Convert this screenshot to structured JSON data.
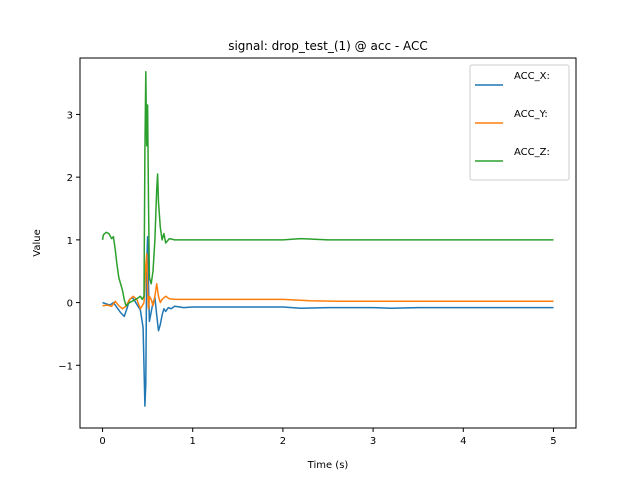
{
  "chart_data": {
    "type": "line",
    "title": "signal: drop_test_(1) @ acc - ACC",
    "xlabel": "Time (s)",
    "ylabel": "Value",
    "xlim": [
      -0.25,
      5.25
    ],
    "ylim": [
      -2.0,
      3.9
    ],
    "xticks": [
      0,
      1,
      2,
      3,
      4,
      5
    ],
    "yticks": [
      -1,
      0,
      1,
      2,
      3
    ],
    "grid": false,
    "legend": "top-right",
    "series": [
      {
        "name": "ACC_X:",
        "color": "#1f77b4",
        "points": [
          [
            0.0,
            0.0
          ],
          [
            0.04,
            -0.02
          ],
          [
            0.08,
            -0.04
          ],
          [
            0.12,
            0.0
          ],
          [
            0.16,
            -0.08
          ],
          [
            0.2,
            -0.16
          ],
          [
            0.24,
            -0.22
          ],
          [
            0.27,
            -0.1
          ],
          [
            0.3,
            0.05
          ],
          [
            0.33,
            0.08
          ],
          [
            0.36,
            0.02
          ],
          [
            0.39,
            -0.05
          ],
          [
            0.42,
            -0.12
          ],
          [
            0.45,
            -0.4
          ],
          [
            0.47,
            -1.65
          ],
          [
            0.48,
            -1.3
          ],
          [
            0.49,
            0.6
          ],
          [
            0.5,
            1.05
          ],
          [
            0.51,
            0.3
          ],
          [
            0.52,
            -0.3
          ],
          [
            0.54,
            -0.15
          ],
          [
            0.56,
            0.0
          ],
          [
            0.58,
            0.08
          ],
          [
            0.6,
            -0.2
          ],
          [
            0.62,
            -0.45
          ],
          [
            0.64,
            -0.35
          ],
          [
            0.66,
            -0.2
          ],
          [
            0.68,
            -0.1
          ],
          [
            0.7,
            -0.14
          ],
          [
            0.73,
            -0.08
          ],
          [
            0.76,
            -0.1
          ],
          [
            0.8,
            -0.06
          ],
          [
            0.9,
            -0.08
          ],
          [
            1.0,
            -0.07
          ],
          [
            1.5,
            -0.07
          ],
          [
            2.0,
            -0.07
          ],
          [
            2.2,
            -0.09
          ],
          [
            2.5,
            -0.08
          ],
          [
            3.0,
            -0.08
          ],
          [
            3.2,
            -0.09
          ],
          [
            3.5,
            -0.08
          ],
          [
            4.0,
            -0.08
          ],
          [
            4.5,
            -0.08
          ],
          [
            5.0,
            -0.08
          ]
        ]
      },
      {
        "name": "ACC_Y:",
        "color": "#ff7f0e",
        "points": [
          [
            0.0,
            -0.05
          ],
          [
            0.05,
            -0.04
          ],
          [
            0.1,
            -0.06
          ],
          [
            0.14,
            0.02
          ],
          [
            0.18,
            -0.05
          ],
          [
            0.22,
            -0.1
          ],
          [
            0.26,
            -0.06
          ],
          [
            0.3,
            0.05
          ],
          [
            0.34,
            0.1
          ],
          [
            0.38,
            0.05
          ],
          [
            0.42,
            -0.1
          ],
          [
            0.44,
            -0.05
          ],
          [
            0.46,
            0.0
          ],
          [
            0.48,
            0.6
          ],
          [
            0.49,
            0.78
          ],
          [
            0.5,
            0.2
          ],
          [
            0.51,
            -0.1
          ],
          [
            0.52,
            0.1
          ],
          [
            0.54,
            0.05
          ],
          [
            0.56,
            -0.05
          ],
          [
            0.58,
            0.1
          ],
          [
            0.6,
            0.3
          ],
          [
            0.62,
            0.1
          ],
          [
            0.64,
            0.0
          ],
          [
            0.66,
            0.05
          ],
          [
            0.7,
            0.1
          ],
          [
            0.74,
            0.06
          ],
          [
            0.8,
            0.05
          ],
          [
            1.0,
            0.05
          ],
          [
            1.5,
            0.05
          ],
          [
            2.0,
            0.05
          ],
          [
            2.3,
            0.03
          ],
          [
            2.6,
            0.02
          ],
          [
            3.0,
            0.02
          ],
          [
            3.5,
            0.02
          ],
          [
            4.0,
            0.02
          ],
          [
            4.5,
            0.02
          ],
          [
            5.0,
            0.02
          ]
        ]
      },
      {
        "name": "ACC_Z:",
        "color": "#2ca02c",
        "points": [
          [
            0.0,
            1.0
          ],
          [
            0.01,
            1.08
          ],
          [
            0.04,
            1.12
          ],
          [
            0.07,
            1.1
          ],
          [
            0.1,
            1.02
          ],
          [
            0.12,
            1.05
          ],
          [
            0.14,
            0.85
          ],
          [
            0.16,
            0.6
          ],
          [
            0.18,
            0.4
          ],
          [
            0.2,
            0.3
          ],
          [
            0.22,
            0.2
          ],
          [
            0.24,
            0.05
          ],
          [
            0.26,
            -0.05
          ],
          [
            0.3,
            0.0
          ],
          [
            0.34,
            0.03
          ],
          [
            0.38,
            0.06
          ],
          [
            0.42,
            0.1
          ],
          [
            0.44,
            0.05
          ],
          [
            0.46,
            0.1
          ],
          [
            0.47,
            2.4
          ],
          [
            0.48,
            3.68
          ],
          [
            0.49,
            2.5
          ],
          [
            0.5,
            3.15
          ],
          [
            0.51,
            1.6
          ],
          [
            0.52,
            0.4
          ],
          [
            0.54,
            0.3
          ],
          [
            0.56,
            0.5
          ],
          [
            0.58,
            1.0
          ],
          [
            0.6,
            1.8
          ],
          [
            0.61,
            2.05
          ],
          [
            0.62,
            1.6
          ],
          [
            0.64,
            1.2
          ],
          [
            0.66,
            1.0
          ],
          [
            0.68,
            1.1
          ],
          [
            0.7,
            0.95
          ],
          [
            0.74,
            1.02
          ],
          [
            0.8,
            1.0
          ],
          [
            1.0,
            1.0
          ],
          [
            1.5,
            1.0
          ],
          [
            2.0,
            1.0
          ],
          [
            2.2,
            1.02
          ],
          [
            2.5,
            1.0
          ],
          [
            3.0,
            1.0
          ],
          [
            3.5,
            1.0
          ],
          [
            4.0,
            1.0
          ],
          [
            4.5,
            1.0
          ],
          [
            5.0,
            1.0
          ]
        ]
      }
    ]
  }
}
